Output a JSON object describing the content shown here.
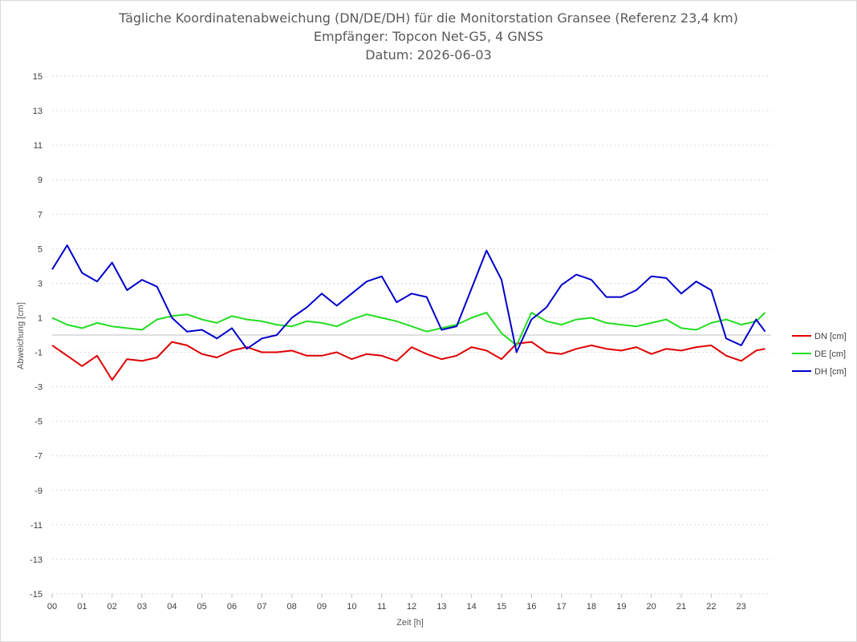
{
  "chart_data": {
    "type": "line",
    "title_lines": [
      "Tägliche Koordinatenabweichung (DN/DE/DH) für die Monitorstation Gransee (Referenz 23,4 km)",
      "Empfänger: Topcon Net-G5, 4 GNSS",
      "Datum: 2026-06-03"
    ],
    "xlabel": "Zeit [h]",
    "ylabel": "Abweichung [cm]",
    "xlim": [
      0,
      24
    ],
    "ylim": [
      -15,
      15
    ],
    "x_tick_labels": [
      "00",
      "01",
      "02",
      "03",
      "04",
      "05",
      "06",
      "07",
      "08",
      "09",
      "10",
      "11",
      "12",
      "13",
      "14",
      "15",
      "16",
      "17",
      "18",
      "19",
      "20",
      "21",
      "22",
      "23"
    ],
    "y_ticks": [
      15,
      13,
      11,
      9,
      7,
      5,
      3,
      1,
      -1,
      -3,
      -5,
      -7,
      -9,
      -11,
      -13,
      -15
    ],
    "grid": "horizontal-dotted",
    "legend_position": "right",
    "series": [
      {
        "name": "DN [cm]",
        "color": "#e00000",
        "x": [
          0,
          0.5,
          1,
          1.5,
          2,
          2.5,
          3,
          3.5,
          4,
          4.5,
          5,
          5.5,
          6,
          6.5,
          7,
          7.5,
          8,
          8.5,
          9,
          9.5,
          10,
          10.5,
          11,
          11.5,
          12,
          12.5,
          13,
          13.5,
          14,
          14.5,
          15,
          15.5,
          16,
          16.5,
          17,
          17.5,
          18,
          18.5,
          19,
          19.5,
          20,
          20.5,
          21,
          21.5,
          22,
          22.5,
          23,
          23.5,
          23.8
        ],
        "y": [
          -0.6,
          -1.2,
          -1.8,
          -1.2,
          -2.6,
          -1.4,
          -1.5,
          -1.3,
          -0.4,
          -0.6,
          -1.1,
          -1.3,
          -0.9,
          -0.7,
          -1.0,
          -1.0,
          -0.9,
          -1.2,
          -1.2,
          -1.0,
          -1.4,
          -1.1,
          -1.2,
          -1.5,
          -0.7,
          -1.1,
          -1.4,
          -1.2,
          -0.7,
          -0.9,
          -1.4,
          -0.5,
          -0.4,
          -1.0,
          -1.1,
          -0.8,
          -0.6,
          -0.8,
          -0.9,
          -0.7,
          -1.1,
          -0.8,
          -0.9,
          -0.7,
          -0.6,
          -1.2,
          -1.5,
          -0.9,
          -0.8
        ]
      },
      {
        "name": "DE [cm]",
        "color": "#22dd22",
        "x": [
          0,
          0.5,
          1,
          1.5,
          2,
          2.5,
          3,
          3.5,
          4,
          4.5,
          5,
          5.5,
          6,
          6.5,
          7,
          7.5,
          8,
          8.5,
          9,
          9.5,
          10,
          10.5,
          11,
          11.5,
          12,
          12.5,
          13,
          13.5,
          14,
          14.5,
          15,
          15.5,
          16,
          16.5,
          17,
          17.5,
          18,
          18.5,
          19,
          19.5,
          20,
          20.5,
          21,
          21.5,
          22,
          22.5,
          23,
          23.5,
          23.8
        ],
        "y": [
          1.0,
          0.6,
          0.4,
          0.7,
          0.5,
          0.4,
          0.3,
          0.9,
          1.1,
          1.2,
          0.9,
          0.7,
          1.1,
          0.9,
          0.8,
          0.6,
          0.5,
          0.8,
          0.7,
          0.5,
          0.9,
          1.2,
          1.0,
          0.8,
          0.5,
          0.2,
          0.4,
          0.6,
          1.0,
          1.3,
          0.1,
          -0.6,
          1.3,
          0.8,
          0.6,
          0.9,
          1.0,
          0.7,
          0.6,
          0.5,
          0.7,
          0.9,
          0.4,
          0.3,
          0.7,
          0.9,
          0.6,
          0.8,
          1.3
        ]
      },
      {
        "name": "DH [cm]",
        "color": "#0000cc",
        "x": [
          0,
          0.5,
          1,
          1.5,
          2,
          2.5,
          3,
          3.5,
          4,
          4.5,
          5,
          5.5,
          6,
          6.5,
          7,
          7.5,
          8,
          8.5,
          9,
          9.5,
          10,
          10.5,
          11,
          11.5,
          12,
          12.5,
          13,
          13.5,
          14,
          14.5,
          15,
          15.5,
          16,
          16.5,
          17,
          17.5,
          18,
          18.5,
          19,
          19.5,
          20,
          20.5,
          21,
          21.5,
          22,
          22.5,
          23,
          23.5,
          23.8
        ],
        "y": [
          3.8,
          5.2,
          3.6,
          3.1,
          4.2,
          2.6,
          3.2,
          2.8,
          1.0,
          0.2,
          0.3,
          -0.2,
          0.4,
          -0.8,
          -0.2,
          0.0,
          1.0,
          1.6,
          2.4,
          1.7,
          2.4,
          3.1,
          3.4,
          1.9,
          2.4,
          2.2,
          0.3,
          0.5,
          2.7,
          4.9,
          3.2,
          -1.0,
          0.9,
          1.6,
          2.9,
          3.5,
          3.2,
          2.2,
          2.2,
          2.6,
          3.4,
          3.3,
          2.4,
          3.1,
          2.6,
          -0.2,
          -0.6,
          0.9,
          0.2
        ]
      }
    ]
  }
}
